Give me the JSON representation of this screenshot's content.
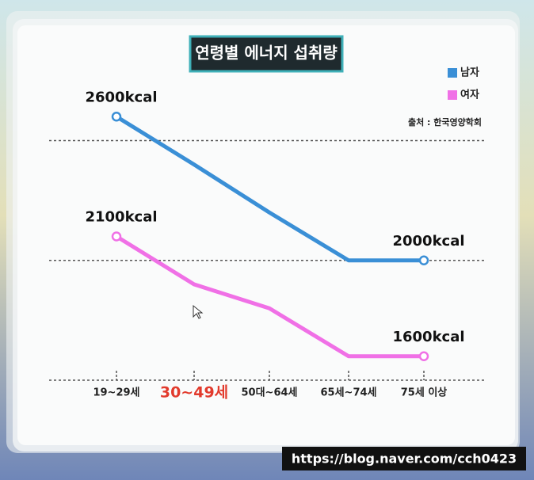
{
  "chart_data": {
    "type": "line",
    "title": "연령별 에너지 섭취량",
    "source": "출처 : 한국영양학회",
    "watermark": "https://blog.naver.com/cch0423",
    "categories": [
      "19~29세",
      "30~49세",
      "50대~64세",
      "65세~74세",
      "75세 이상"
    ],
    "highlighted_category": "30~49세",
    "highlight_color": "#e23a2c",
    "series": [
      {
        "name": "남자",
        "color": "#3a8fd6",
        "values": [
          2600,
          2400,
          2200,
          2000,
          2000
        ],
        "value_labels": [
          "2600kcal",
          null,
          null,
          null,
          "2000kcal"
        ]
      },
      {
        "name": "여자",
        "color": "#f070e6",
        "values": [
          2100,
          1900,
          1800,
          1600,
          1600
        ],
        "value_labels": [
          "2100kcal",
          null,
          null,
          null,
          "1600kcal"
        ]
      }
    ],
    "ylim": [
      1500,
      2700
    ],
    "grid_values": [
      1500,
      2000,
      2500
    ],
    "grid": true
  }
}
